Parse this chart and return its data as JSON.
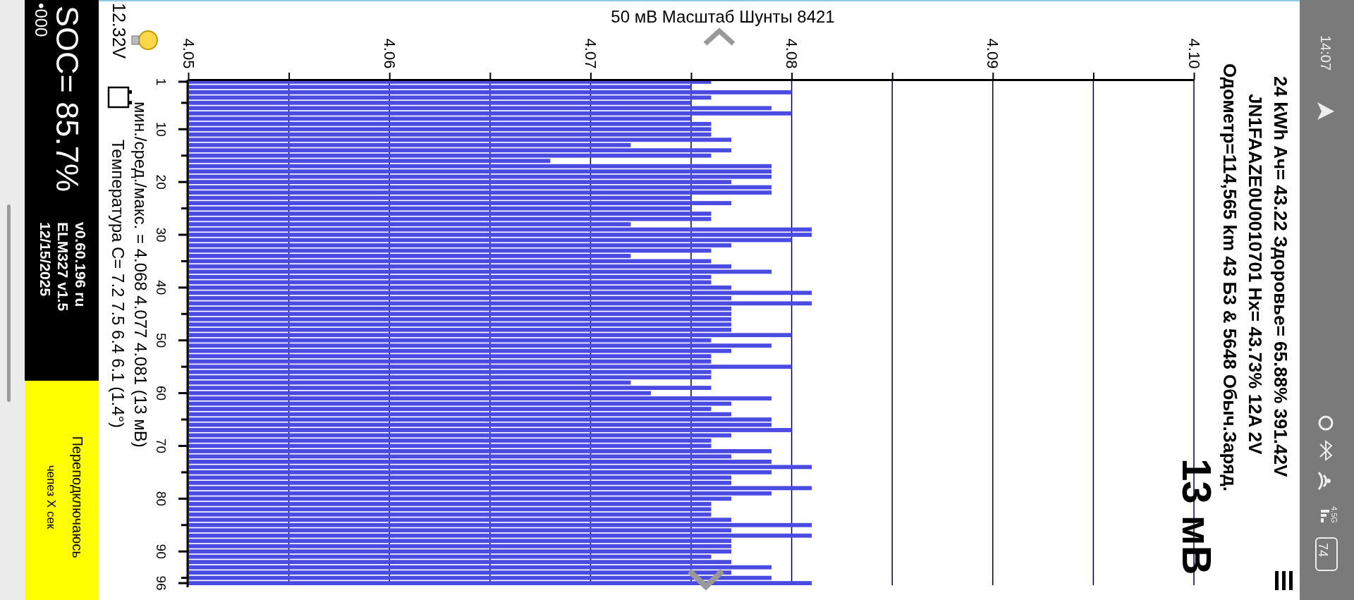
{
  "chart_data": {
    "type": "bar",
    "orientation": "horizontal",
    "title": "50 мВ Масштаб  Шунты 8421",
    "categories": [
      "1",
      null,
      null,
      null,
      null,
      null,
      null,
      null,
      null,
      "10",
      null,
      null,
      null,
      null,
      null,
      null,
      null,
      null,
      null,
      "20",
      null,
      null,
      null,
      null,
      null,
      null,
      null,
      null,
      null,
      "30",
      null,
      null,
      null,
      null,
      null,
      null,
      null,
      null,
      null,
      "40",
      null,
      null,
      null,
      null,
      null,
      null,
      null,
      null,
      null,
      "50",
      null,
      null,
      null,
      null,
      null,
      null,
      null,
      null,
      null,
      "60",
      null,
      null,
      null,
      null,
      null,
      null,
      null,
      null,
      null,
      "70",
      null,
      null,
      null,
      null,
      null,
      null,
      null,
      null,
      null,
      "80",
      null,
      null,
      null,
      null,
      null,
      null,
      null,
      null,
      null,
      "90",
      null,
      null,
      null,
      null,
      null,
      "96"
    ],
    "values": [
      4.076,
      4.075,
      4.08,
      4.076,
      4.075,
      4.079,
      4.08,
      4.075,
      4.076,
      4.076,
      4.076,
      4.077,
      4.072,
      4.077,
      4.076,
      4.068,
      4.079,
      4.079,
      4.079,
      4.077,
      4.079,
      4.079,
      4.075,
      4.077,
      4.075,
      4.076,
      4.076,
      4.072,
      4.081,
      4.081,
      4.08,
      4.077,
      4.076,
      4.072,
      4.076,
      4.077,
      4.079,
      4.076,
      4.076,
      4.077,
      4.081,
      4.077,
      4.081,
      4.077,
      4.077,
      4.077,
      4.077,
      4.077,
      4.08,
      4.076,
      4.079,
      4.077,
      4.076,
      4.076,
      4.08,
      4.076,
      4.076,
      4.072,
      4.076,
      4.073,
      4.079,
      4.077,
      4.076,
      4.077,
      4.079,
      4.079,
      4.08,
      4.077,
      4.076,
      4.076,
      4.079,
      4.077,
      4.079,
      4.081,
      4.079,
      4.077,
      4.077,
      4.081,
      4.079,
      4.077,
      4.076,
      4.076,
      4.076,
      4.077,
      4.081,
      4.077,
      4.081,
      4.077,
      4.077,
      4.077,
      4.076,
      4.077,
      4.079,
      4.077,
      4.079,
      4.081
    ],
    "color": "#4b4be2",
    "xlim": [
      4.05,
      4.1
    ],
    "xticks": [
      4.05,
      {
        "value": 4.055,
        "label": null
      },
      4.06,
      {
        "value": 4.065,
        "label": null
      },
      4.07,
      {
        "value": 4.075,
        "label": null
      },
      4.08,
      {
        "value": 4.085,
        "label": null
      },
      4.09,
      {
        "value": 4.095,
        "label": null
      },
      {
        "value": 4.1,
        "label": "4.10"
      }
    ],
    "grid": "x",
    "annotations": [
      "12.32V",
      "мин./сред./макс. = 4.068 4.077 4.081  (13 мВ)",
      "Температура C= 7.2 7.5 6.4 6.1 (1.4°)",
      "SOC= 85.7%",
      "•000",
      "v0.60.196 ru",
      "ELM327 v1.5",
      "12/15/2025",
      "Переподключаюсь",
      "чепез X сек",
      "24 kWh  Ач= 43.22  Здоровье= 65.88%  391.42V",
      "JN1FAAZE0U0010701  Hx= 43.73% 12A 2V",
      "Одометр=114,565 km 43 Б3 & 5648 Обыч.Заряд.",
      "13 мВ",
      "14:07",
      "4.5G",
      "74"
    ]
  }
}
